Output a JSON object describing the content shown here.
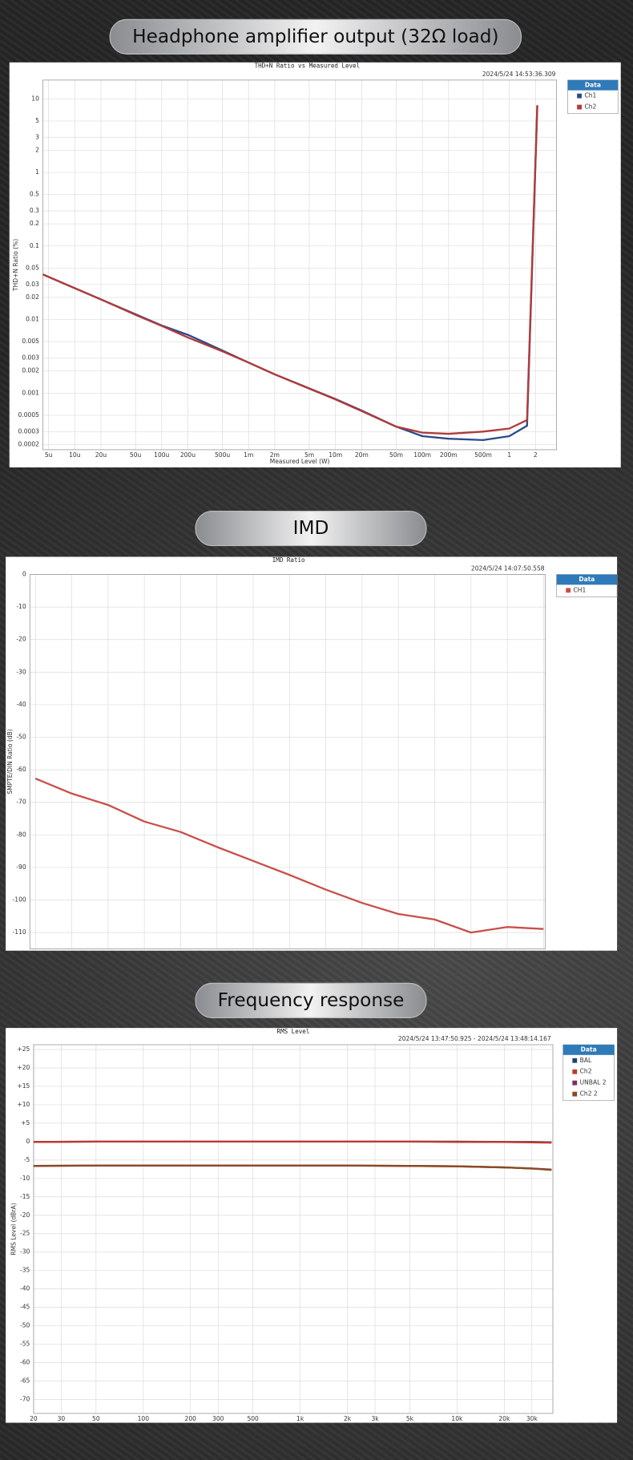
{
  "chart_data": [
    {
      "heading": "Headphone amplifier output (32Ω load)",
      "type": "line",
      "title": "THD+N Ratio vs Measured Level",
      "timestamp": "2024/5/24 14:53:36.309",
      "x_label": "Measured Level (W)",
      "y_label": "THD+N Ratio (%)",
      "legend_title": "Data",
      "xscale": "log",
      "yscale": "log",
      "grid": true,
      "xlim": [
        4.3e-06,
        3.5
      ],
      "ylim": [
        0.00017,
        18
      ],
      "xticks": [
        {
          "value": 5e-06,
          "label": "5u"
        },
        {
          "value": 1e-05,
          "label": "10u"
        },
        {
          "value": 2e-05,
          "label": "20u"
        },
        {
          "value": 5e-05,
          "label": "50u"
        },
        {
          "value": 0.0001,
          "label": "100u"
        },
        {
          "value": 0.0002,
          "label": "200u"
        },
        {
          "value": 0.0005,
          "label": "500u"
        },
        {
          "value": 0.001,
          "label": "1m"
        },
        {
          "value": 0.002,
          "label": "2m"
        },
        {
          "value": 0.005,
          "label": "5m"
        },
        {
          "value": 0.01,
          "label": "10m"
        },
        {
          "value": 0.02,
          "label": "20m"
        },
        {
          "value": 0.05,
          "label": "50m"
        },
        {
          "value": 0.1,
          "label": "100m"
        },
        {
          "value": 0.2,
          "label": "200m"
        },
        {
          "value": 0.5,
          "label": "500m"
        },
        1,
        2
      ],
      "yticks": [
        10,
        5,
        3,
        2,
        1,
        0.5,
        0.3,
        0.2,
        0.1,
        0.05,
        0.03,
        0.02,
        0.01,
        0.005,
        0.003,
        0.002,
        0.001,
        0.0005,
        0.0003,
        0.0002
      ],
      "x": [
        4.3e-06,
        1e-05,
        2e-05,
        5e-05,
        0.0001,
        0.0002,
        0.0005,
        0.001,
        0.002,
        0.005,
        0.01,
        0.02,
        0.05,
        0.1,
        0.2,
        0.5,
        1,
        1.6,
        2.1
      ],
      "series": [
        {
          "name": "Ch1",
          "color": "#2b4a8c",
          "values": [
            0.041,
            0.0267,
            0.0188,
            0.0118,
            0.0083,
            0.0062,
            0.0038,
            0.0026,
            0.0018,
            0.00116,
            0.00083,
            0.00058,
            0.00035,
            0.00026,
            0.00024,
            0.00023,
            0.00026,
            0.00036,
            8
          ]
        },
        {
          "name": "Ch2",
          "color": "#b03a3a",
          "values": [
            0.041,
            0.0267,
            0.0188,
            0.0116,
            0.0082,
            0.0057,
            0.0037,
            0.0026,
            0.0018,
            0.00115,
            0.00082,
            0.00057,
            0.00035,
            0.00029,
            0.00028,
            0.0003,
            0.00033,
            0.00043,
            8.2
          ]
        }
      ]
    },
    {
      "heading": "IMD",
      "type": "line",
      "title": "IMD Ratio",
      "timestamp": "2024/5/24 14:07:50.558",
      "y_label": "SMPTE/DIN Ratio (dB)",
      "legend_title": "Data",
      "grid": true,
      "ylim": [
        -115,
        0
      ],
      "yticks": [
        0,
        -10,
        -20,
        -30,
        -40,
        -50,
        -60,
        -70,
        -80,
        -90,
        -100,
        -110
      ],
      "categories": [
        null,
        null,
        null,
        null,
        null,
        null,
        null,
        null,
        null,
        null,
        null,
        null,
        null,
        null,
        null
      ],
      "series": [
        {
          "name": "CH1",
          "color": "#c8504a",
          "values": [
            -62.7,
            -67.3,
            -70.8,
            -75.9,
            -79.1,
            -83.7,
            -88,
            -92.3,
            -96.8,
            -100.9,
            -104.3,
            -106,
            -110,
            -108.3,
            -108.9
          ]
        }
      ]
    },
    {
      "heading": "Frequency response",
      "type": "line",
      "title": "RMS Level",
      "timestamp": "2024/5/24 13:47:50.925 -   2024/5/24 13:48:14.167",
      "y_label": "RMS Level (dBrA)",
      "legend_title": "Data",
      "xscale": "log",
      "grid": true,
      "xlim": [
        20,
        40800
      ],
      "ylim": [
        -73.8,
        26.3
      ],
      "xticks": [
        20,
        30,
        50,
        100,
        200,
        300,
        500,
        {
          "value": 1000,
          "label": "1k"
        },
        {
          "value": 2000,
          "label": "2k"
        },
        {
          "value": 3000,
          "label": "3k"
        },
        {
          "value": 5000,
          "label": "5k"
        },
        {
          "value": 10000,
          "label": "10k"
        },
        {
          "value": 20000,
          "label": "20k"
        },
        {
          "value": 30000,
          "label": "30k"
        }
      ],
      "yticks": [
        {
          "value": 25,
          "label": "+25"
        },
        {
          "value": 20,
          "label": "+20"
        },
        {
          "value": 15,
          "label": "+15"
        },
        {
          "value": 10,
          "label": "+10"
        },
        {
          "value": 5,
          "label": "+5"
        },
        0,
        -5,
        -10,
        -15,
        -20,
        -25,
        -30,
        -35,
        -40,
        -45,
        -50,
        -55,
        -60,
        -65,
        -70
      ],
      "x": [
        20,
        50,
        100,
        200,
        500,
        1000,
        2000,
        5000,
        10000,
        20000,
        30000,
        40000
      ],
      "series": [
        {
          "name": "BAL",
          "color": "#1f3f7a",
          "values": [
            -0.1,
            0,
            0,
            0,
            0,
            0,
            0,
            0,
            0,
            -0.1,
            -0.1,
            -0.2
          ]
        },
        {
          "name": "Ch2",
          "color": "#c0392b",
          "values": [
            -0.1,
            0,
            0,
            0,
            0,
            0,
            0,
            0,
            -0.1,
            -0.1,
            -0.2,
            -0.3
          ]
        },
        {
          "name": "UNBAL 2",
          "color": "#7b2d6e",
          "values": [
            -6.6,
            -6.5,
            -6.5,
            -6.5,
            -6.5,
            -6.5,
            -6.5,
            -6.6,
            -6.7,
            -7,
            -7.3,
            -7.6
          ]
        },
        {
          "name": "Ch2 2",
          "color": "#8b4a1f",
          "values": [
            -6.6,
            -6.5,
            -6.5,
            -6.5,
            -6.5,
            -6.5,
            -6.5,
            -6.6,
            -6.7,
            -7,
            -7.3,
            -7.7
          ]
        }
      ]
    }
  ]
}
